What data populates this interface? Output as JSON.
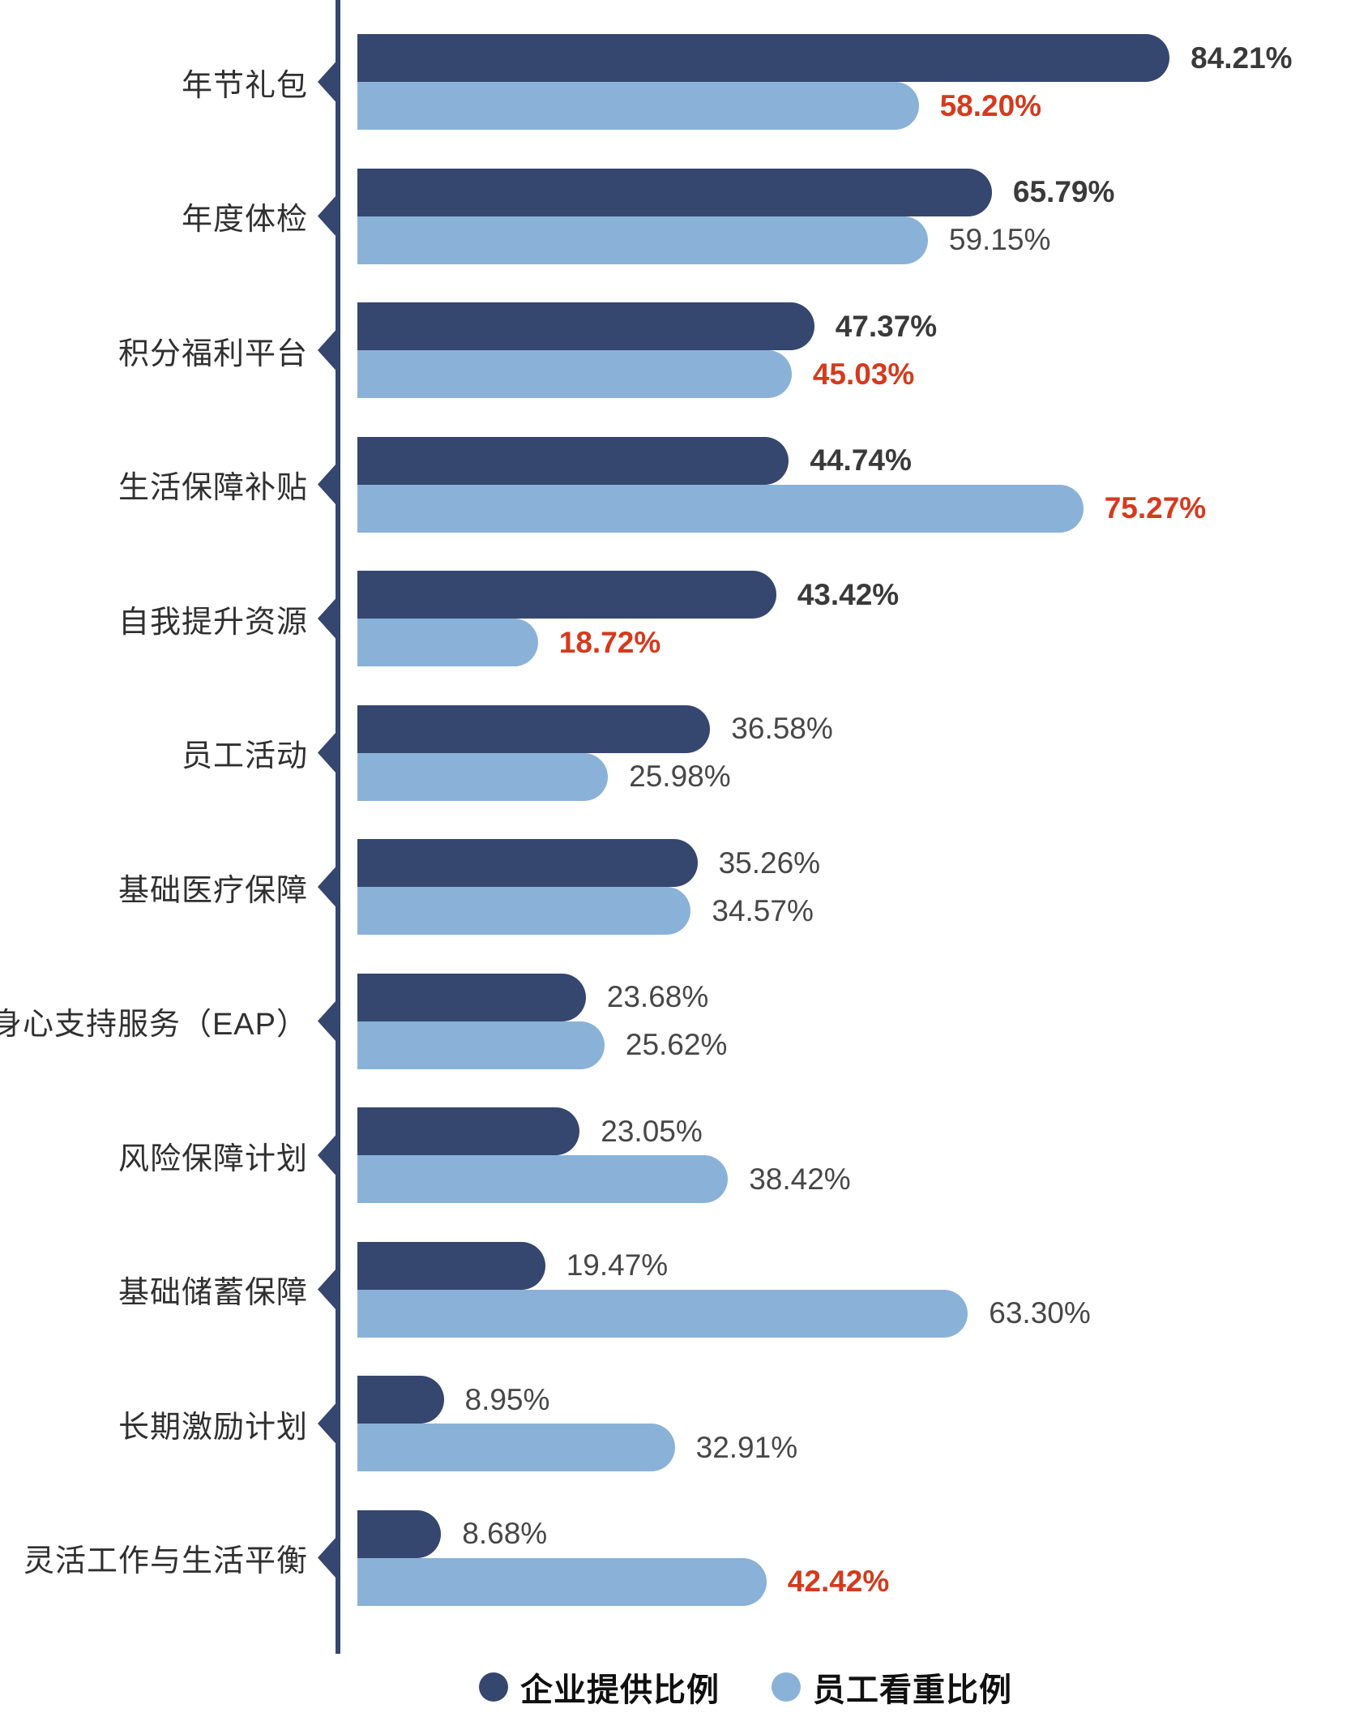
{
  "chart_data": {
    "type": "bar",
    "orientation": "horizontal",
    "title": "",
    "categories": [
      "年节礼包",
      "年度体检",
      "积分福利平台",
      "生活保障补贴",
      "自我提升资源",
      "员工活动",
      "基础医疗保障",
      "身心支持服务（EAP）",
      "风险保障计划",
      "基础储蓄保障",
      "长期激励计划",
      "灵活工作与生活平衡"
    ],
    "xlim": [
      0,
      100
    ],
    "value_suffix": "%",
    "grid": false,
    "legend_position": "bottom",
    "axis_color": "#35466F",
    "highlight_color": "#D53A1D",
    "series": [
      {
        "name": "企业提供比例",
        "color": "#35466F",
        "values": [
          84.21,
          65.79,
          47.37,
          44.74,
          43.42,
          36.58,
          35.26,
          23.68,
          23.05,
          19.47,
          8.95,
          8.68
        ],
        "value_labels": [
          "84.21%",
          "65.79%",
          "47.37%",
          "44.74%",
          "43.42%",
          "36.58%",
          "35.26%",
          "23.68%",
          "23.05%",
          "19.47%",
          "8.95%",
          "8.68%"
        ],
        "value_styles": [
          "bold",
          "bold",
          "bold",
          "bold",
          "bold",
          "normal",
          "normal",
          "normal",
          "normal",
          "normal",
          "normal",
          "normal"
        ]
      },
      {
        "name": "员工看重比例",
        "color": "#8AB2D8",
        "values": [
          58.2,
          59.15,
          45.03,
          75.27,
          18.72,
          25.98,
          34.57,
          25.62,
          38.42,
          63.3,
          32.91,
          42.42
        ],
        "value_labels": [
          "58.20%",
          "59.15%",
          "45.03%",
          "75.27%",
          "18.72%",
          "25.98%",
          "34.57%",
          "25.62%",
          "38.42%",
          "63.30%",
          "32.91%",
          "42.42%"
        ],
        "value_styles": [
          "red",
          "normal",
          "red",
          "red",
          "red",
          "normal",
          "normal",
          "normal",
          "normal",
          "normal",
          "normal",
          "red"
        ]
      }
    ]
  },
  "legend": {
    "items": [
      {
        "label": "企业提供比例",
        "color": "#35466F"
      },
      {
        "label": "员工看重比例",
        "color": "#8AB2D8"
      }
    ]
  }
}
